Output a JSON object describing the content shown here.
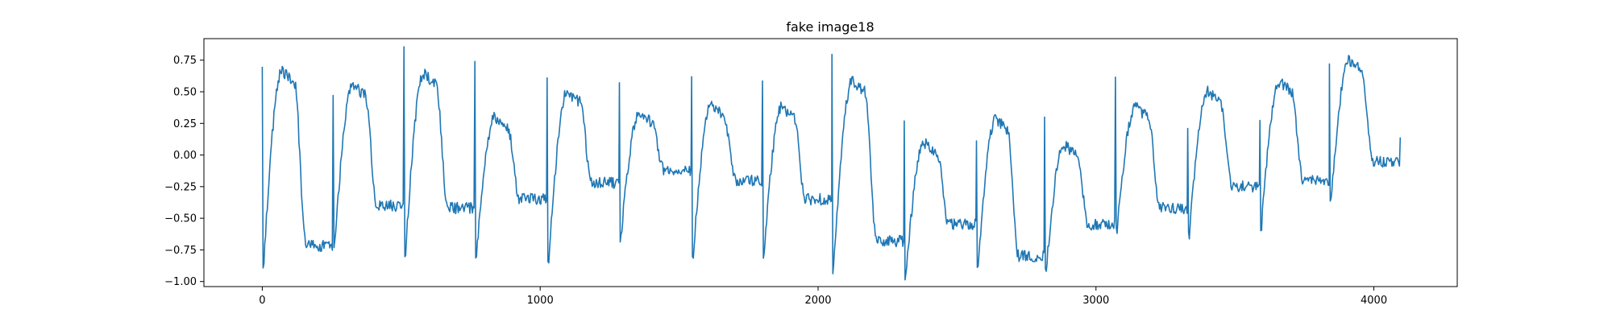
{
  "chart_data": {
    "type": "line",
    "title": "fake image18",
    "xlabel": "",
    "ylabel": "",
    "xlim": [
      -210,
      4300
    ],
    "ylim": [
      -1.04,
      0.92
    ],
    "grid": false,
    "x_ticks": [
      0,
      1000,
      2000,
      3000,
      4000
    ],
    "y_ticks": [
      -1.0,
      -0.75,
      -0.5,
      -0.25,
      0.0,
      0.25,
      0.5,
      0.75
    ],
    "x_tick_labels": [
      "0",
      "1000",
      "2000",
      "3000",
      "4000"
    ],
    "y_tick_labels": [
      "−1.00",
      "−0.75",
      "−0.50",
      "−0.25",
      "0.00",
      "0.25",
      "0.50",
      "0.75"
    ],
    "series": [
      {
        "color": "#1f77b4",
        "x_start": 0,
        "x_end": 4095,
        "beats": [
          {
            "start": 0,
            "spike": 0.72,
            "dip": -0.85,
            "peak": 0.66,
            "base": -0.72
          },
          {
            "start": 255,
            "spike": 0.5,
            "dip": -0.73,
            "peak": 0.55,
            "base": -0.4
          },
          {
            "start": 510,
            "spike": 0.84,
            "dip": -0.78,
            "peak": 0.64,
            "base": -0.42
          },
          {
            "start": 765,
            "spike": 0.75,
            "dip": -0.8,
            "peak": 0.3,
            "base": -0.35
          },
          {
            "start": 1025,
            "spike": 0.57,
            "dip": -0.85,
            "peak": 0.5,
            "base": -0.22
          },
          {
            "start": 1285,
            "spike": 0.55,
            "dip": -0.65,
            "peak": 0.33,
            "base": -0.12
          },
          {
            "start": 1545,
            "spike": 0.6,
            "dip": -0.8,
            "peak": 0.4,
            "base": -0.2
          },
          {
            "start": 1800,
            "spike": 0.57,
            "dip": -0.8,
            "peak": 0.38,
            "base": -0.35
          },
          {
            "start": 2050,
            "spike": 0.77,
            "dip": -0.93,
            "peak": 0.58,
            "base": -0.68
          },
          {
            "start": 2310,
            "spike": 0.25,
            "dip": -0.95,
            "peak": 0.1,
            "base": -0.55
          },
          {
            "start": 2570,
            "spike": 0.08,
            "dip": -0.9,
            "peak": 0.28,
            "base": -0.8
          },
          {
            "start": 2815,
            "spike": 0.33,
            "dip": -0.91,
            "peak": 0.08,
            "base": -0.55
          },
          {
            "start": 3070,
            "spike": 0.65,
            "dip": -0.6,
            "peak": 0.38,
            "base": -0.42
          },
          {
            "start": 3330,
            "spike": 0.23,
            "dip": -0.65,
            "peak": 0.5,
            "base": -0.25
          },
          {
            "start": 3590,
            "spike": 0.28,
            "dip": -0.58,
            "peak": 0.58,
            "base": -0.2
          },
          {
            "start": 3840,
            "spike": 0.68,
            "dip": -0.35,
            "peak": 0.75,
            "base": -0.05
          }
        ],
        "last_value": 0.14
      }
    ]
  }
}
